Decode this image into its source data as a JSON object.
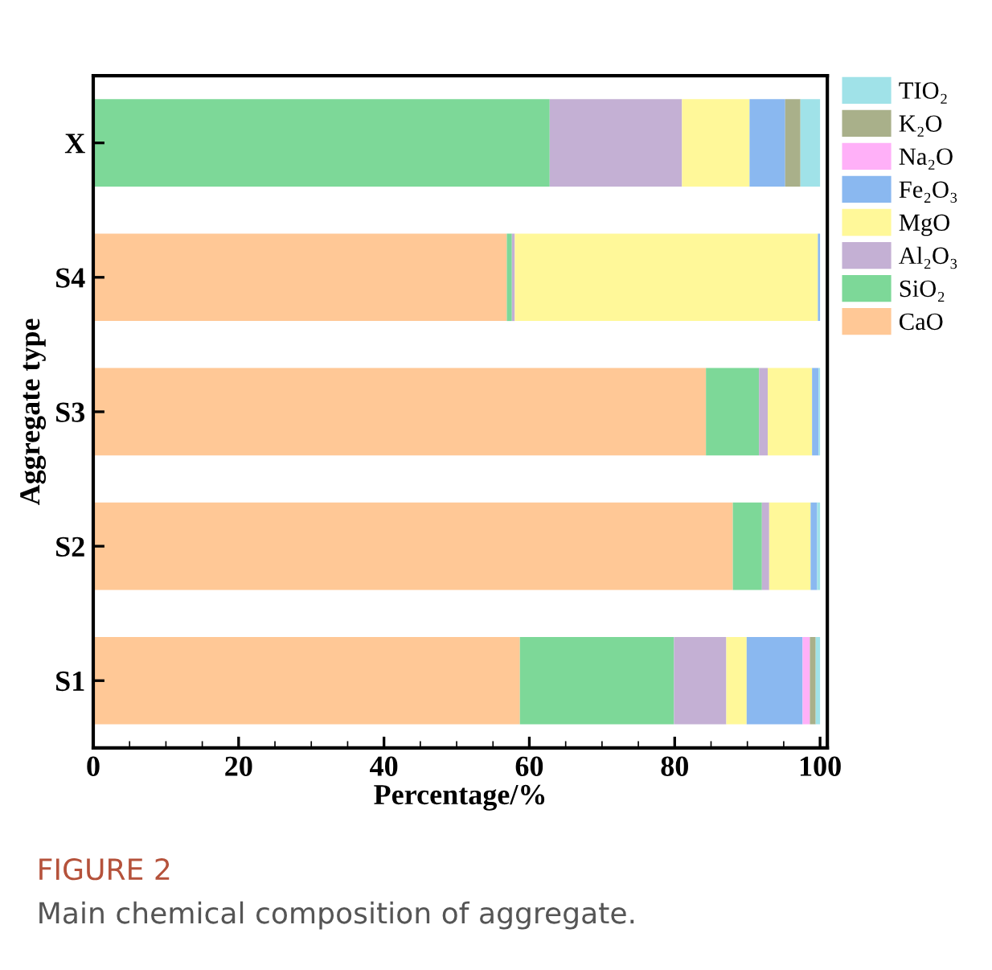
{
  "chart_data": {
    "type": "bar",
    "orientation": "horizontal",
    "stacked": true,
    "xlabel": "Percentage/%",
    "ylabel": "Aggregate type",
    "categories": [
      "X",
      "S4",
      "S3",
      "S2",
      "S1"
    ],
    "series": [
      {
        "name": "CaO",
        "color": "#ffc896",
        "values": [
          0,
          56.9,
          84.3,
          88.0,
          58.7
        ]
      },
      {
        "name": "SiO₂",
        "color": "#7dd898",
        "values": [
          62.8,
          0.7,
          7.3,
          4.0,
          21.2
        ]
      },
      {
        "name": "Al₂O₃",
        "color": "#c4b0d4",
        "values": [
          18.2,
          0.4,
          1.2,
          1.0,
          7.2
        ]
      },
      {
        "name": "MgO",
        "color": "#fff899",
        "values": [
          9.3,
          41.7,
          6.1,
          5.7,
          2.8
        ]
      },
      {
        "name": "Fe₂O₃",
        "color": "#8ab8f0",
        "values": [
          4.9,
          0.3,
          0.9,
          0.9,
          7.7
        ]
      },
      {
        "name": "Na₂O",
        "color": "#ffb0f8",
        "values": [
          0,
          0,
          0,
          0,
          1.0
        ]
      },
      {
        "name": "K₂O",
        "color": "#a9b08a",
        "values": [
          2.1,
          0,
          0,
          0,
          0.8
        ]
      },
      {
        "name": "TIO₂",
        "color": "#a0e2e8",
        "values": [
          2.7,
          0,
          0.2,
          0.4,
          0.6
        ]
      }
    ],
    "xlim": [
      0,
      101
    ],
    "xticks": [
      0,
      20,
      40,
      60,
      80,
      100
    ],
    "grid": false,
    "legend": "top right",
    "annotations": [
      "FIGURE 2",
      "Main chemical composition of aggregate."
    ]
  }
}
